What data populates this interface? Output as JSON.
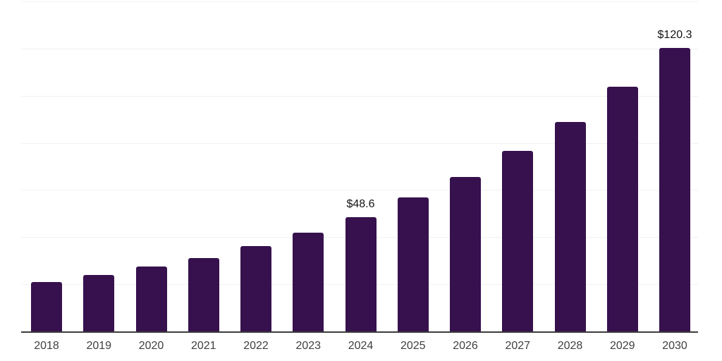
{
  "chart_data": {
    "type": "bar",
    "title": "",
    "xlabel": "",
    "ylabel": "",
    "categories": [
      "2018",
      "2019",
      "2020",
      "2021",
      "2022",
      "2023",
      "2024",
      "2025",
      "2026",
      "2027",
      "2028",
      "2029",
      "2030"
    ],
    "values": [
      20.8,
      23.9,
      27.5,
      31.1,
      36.1,
      42.0,
      48.6,
      56.7,
      65.4,
      76.5,
      89.0,
      103.7,
      120.3
    ],
    "value_prefix": "$",
    "data_labels": [
      {
        "category": "2024",
        "text": "$48.6"
      },
      {
        "category": "2030",
        "text": "$120.3"
      }
    ],
    "ylim": [
      0,
      140
    ],
    "gridline_step": 20,
    "grid": "horizontal",
    "legend": "none"
  },
  "style": {
    "bar_color": "#36114E",
    "axis_line_color": "#3c3c3c",
    "gridline_color": "#f1f1f3",
    "tick_label_color": "#404040",
    "data_label_color": "#141414",
    "background": "#ffffff"
  }
}
